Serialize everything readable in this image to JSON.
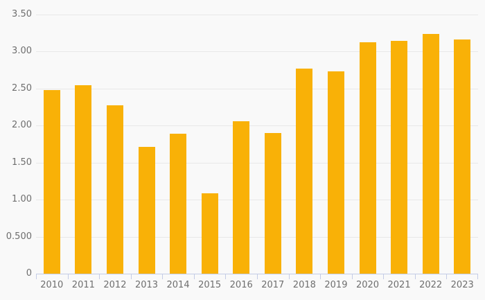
{
  "chart_data": {
    "type": "bar",
    "title": "",
    "xlabel": "",
    "ylabel": "",
    "categories": [
      "2010",
      "2011",
      "2012",
      "2013",
      "2014",
      "2015",
      "2016",
      "2017",
      "2018",
      "2019",
      "2020",
      "2021",
      "2022",
      "2023"
    ],
    "values": [
      2.48,
      2.55,
      2.27,
      1.71,
      1.89,
      1.09,
      2.06,
      1.9,
      2.77,
      2.73,
      3.13,
      3.14,
      3.24,
      3.16
    ],
    "ylim": [
      0,
      3.5
    ],
    "yticks": [
      {
        "value": 3.5,
        "label": "3.50"
      },
      {
        "value": 3.0,
        "label": "3.00"
      },
      {
        "value": 2.5,
        "label": "2.50"
      },
      {
        "value": 2.0,
        "label": "2.00"
      },
      {
        "value": 1.5,
        "label": "1.50"
      },
      {
        "value": 1.0,
        "label": "1.00"
      },
      {
        "value": 0.5,
        "label": "0.500"
      },
      {
        "value": 0,
        "label": "0"
      }
    ],
    "grid": "horizontal",
    "legend": "none",
    "colors": {
      "bar": "#F9B107",
      "axis": "#C4CCE6",
      "gridline": "#E8E8E8",
      "background": "#F9F9F9",
      "tick_label": "#6E6E6E"
    }
  }
}
